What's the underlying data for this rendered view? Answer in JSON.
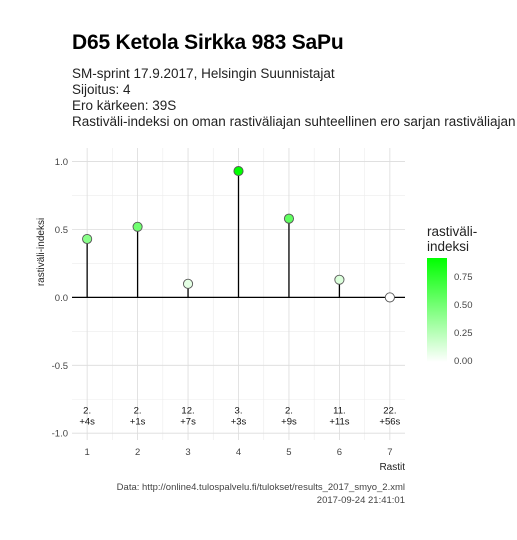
{
  "header": {
    "title": "D65 Ketola Sirkka 983 SaPu",
    "subtitle_lines": [
      "SM-sprint 17.9.2017, Helsingin Suunnistajat",
      "Sijoitus: 4",
      "Ero kärkeen: 39S",
      "Rastiväli-indeksi on oman rastiväliajan suhteellinen ero sarjan rastiväliajan kes"
    ]
  },
  "chart_data": {
    "type": "lollipop",
    "x": [
      1,
      2,
      3,
      4,
      5,
      6,
      7
    ],
    "values": [
      0.43,
      0.52,
      0.1,
      0.93,
      0.58,
      0.13,
      0.0
    ],
    "point_labels_rank": [
      "2.",
      "2.",
      "12.",
      "3.",
      "2.",
      "11.",
      "22."
    ],
    "point_labels_diff": [
      "+4s",
      "+1s",
      "+7s",
      "+3s",
      "+9s",
      "+11s",
      "+56s"
    ],
    "xlabel": "Rastit",
    "ylabel": "rastiväli-indeksi",
    "xticks": [
      "1",
      "2",
      "3",
      "4",
      "5",
      "6",
      "7"
    ],
    "yticks": [
      "-1.0",
      "-0.5",
      "0.0",
      "0.5",
      "1.0"
    ],
    "ytick_values": [
      -1.0,
      -0.5,
      0.0,
      0.5,
      1.0
    ],
    "ylim": [
      -1.05,
      1.1
    ],
    "xlim": [
      0.7,
      7.3
    ],
    "grid": true,
    "colors": {
      "low": "#ffffff",
      "high": "#00ff00"
    },
    "legend": {
      "title": "rastiväli-\nindeksi",
      "ticks": [
        "0.75",
        "0.50",
        "0.25",
        "0.00"
      ],
      "tick_values": [
        0.75,
        0.5,
        0.25,
        0.0
      ],
      "range": [
        0,
        0.93
      ],
      "placement": "right"
    }
  },
  "caption": {
    "line1": "Data: http://online4.tulospalvelu.fi/tulokset/results_2017_smyo_2.xml",
    "line2": "2017-09-24 21:41:01"
  }
}
